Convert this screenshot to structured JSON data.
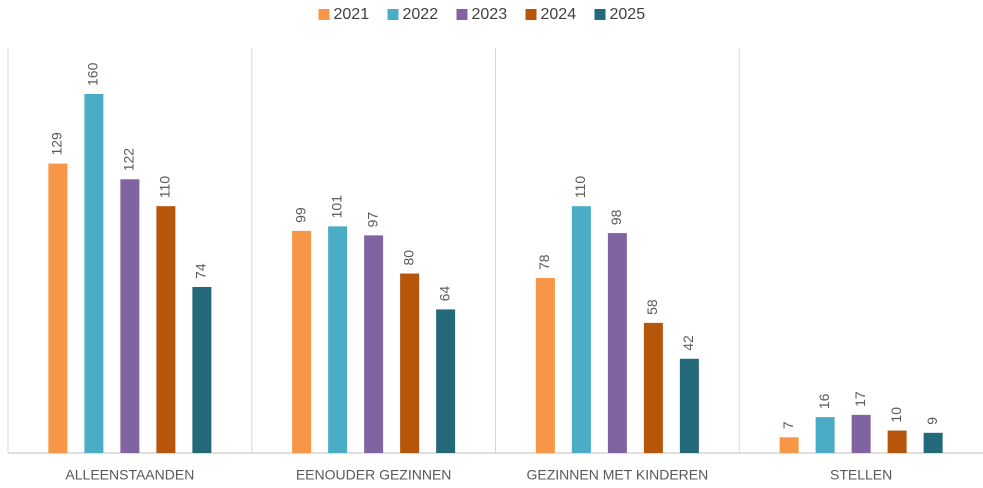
{
  "chart_data": {
    "type": "bar",
    "categories": [
      "ALLEENSTAANDEN",
      "EENOUDER GEZINNEN",
      "GEZINNEN MET KINDEREN",
      "STELLEN"
    ],
    "series": [
      {
        "name": "2021",
        "color": "#f79646",
        "values": [
          129,
          99,
          78,
          7
        ]
      },
      {
        "name": "2022",
        "color": "#4bacc6",
        "values": [
          160,
          101,
          110,
          16
        ]
      },
      {
        "name": "2023",
        "color": "#8064a2",
        "values": [
          122,
          97,
          98,
          17
        ]
      },
      {
        "name": "2024",
        "color": "#b7560a",
        "values": [
          110,
          80,
          58,
          10
        ]
      },
      {
        "name": "2025",
        "color": "#23697a",
        "values": [
          74,
          64,
          42,
          9
        ]
      }
    ],
    "legend": "top"
  }
}
